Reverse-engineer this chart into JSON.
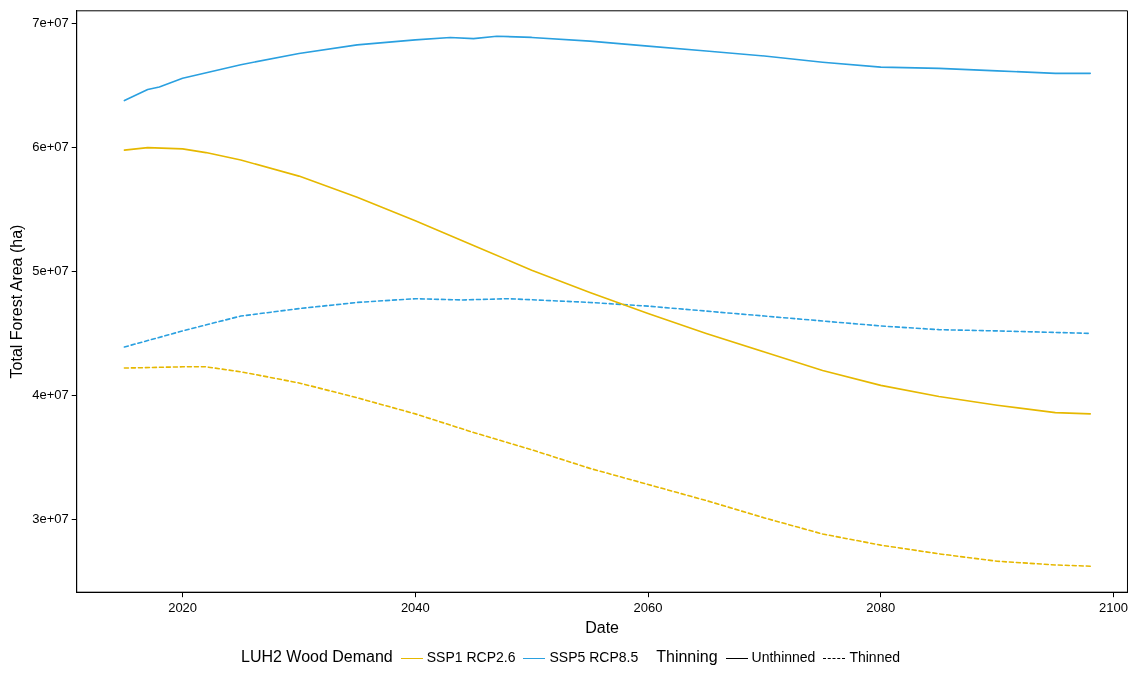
{
  "chart_data": {
    "type": "line",
    "xlabel": "Date",
    "ylabel": "Total Forest Area (ha)",
    "legend_title": "LUH2 Wood Demand",
    "legend": "bottom",
    "grid": false,
    "marker": "none",
    "annotations": [
      "Thinning",
      "Unthinned",
      "Thinned"
    ],
    "xlim": [
      2010.9,
      2101.2
    ],
    "xticks": [
      2020,
      2040,
      2060,
      2080,
      2100
    ],
    "ylim": [
      24100000,
      71050000
    ],
    "yticks": [
      {
        "value": 30000000,
        "label": "3e+07"
      },
      {
        "value": 40000000,
        "label": "4e+07"
      },
      {
        "value": 50000000,
        "label": "5e+07"
      },
      {
        "value": 60000000,
        "label": "6e+07"
      },
      {
        "value": 70000000,
        "label": "7e+07"
      }
    ],
    "series": [
      {
        "name": "SSP1 RCP2.6",
        "color": "#e6b800",
        "line_style": "solid",
        "x": [
          2015,
          2017,
          2020,
          2022,
          2025,
          2030,
          2035,
          2040,
          2045,
          2050,
          2055,
          2060,
          2065,
          2070,
          2075,
          2080,
          2085,
          2090,
          2095,
          2098
        ],
        "values": [
          59800000,
          60000000,
          59900000,
          59600000,
          59000000,
          57700000,
          56000000,
          54100000,
          52100000,
          50100000,
          48300000,
          46600000,
          45000000,
          43500000,
          42000000,
          40800000,
          39900000,
          39200000,
          38600000,
          38500000
        ]
      },
      {
        "name": "SSP5 RCP8.5",
        "color": "#2aa0e0",
        "line_style": "solid",
        "x": [
          2015,
          2017,
          2018,
          2020,
          2025,
          2030,
          2035,
          2040,
          2043,
          2045,
          2047,
          2050,
          2055,
          2060,
          2065,
          2070,
          2075,
          2080,
          2085,
          2090,
          2095,
          2098
        ],
        "values": [
          63800000,
          64700000,
          64900000,
          65600000,
          66700000,
          67600000,
          68300000,
          68700000,
          68900000,
          68800000,
          69000000,
          68900000,
          68600000,
          68200000,
          67800000,
          67400000,
          66900000,
          66500000,
          66400000,
          66200000,
          66000000,
          66000000
        ]
      },
      {
        "color": "#e6b800",
        "line_style": "dashed",
        "x": [
          2015,
          2020,
          2022,
          2025,
          2030,
          2035,
          2040,
          2045,
          2050,
          2055,
          2060,
          2065,
          2070,
          2075,
          2080,
          2085,
          2090,
          2095,
          2098
        ],
        "values": [
          42200000,
          42300000,
          42300000,
          41900000,
          41000000,
          39800000,
          38500000,
          37000000,
          35600000,
          34100000,
          32800000,
          31500000,
          30100000,
          28800000,
          27900000,
          27200000,
          26600000,
          26300000,
          26200000
        ]
      },
      {
        "color": "#2aa0e0",
        "line_style": "dashed",
        "x": [
          2015,
          2020,
          2025,
          2030,
          2035,
          2040,
          2044,
          2048,
          2055,
          2060,
          2065,
          2070,
          2075,
          2080,
          2085,
          2090,
          2098
        ],
        "values": [
          43900000,
          45200000,
          46400000,
          47000000,
          47500000,
          47800000,
          47700000,
          47800000,
          47500000,
          47200000,
          46800000,
          46400000,
          46000000,
          45600000,
          45300000,
          45200000,
          45000000
        ]
      }
    ]
  }
}
